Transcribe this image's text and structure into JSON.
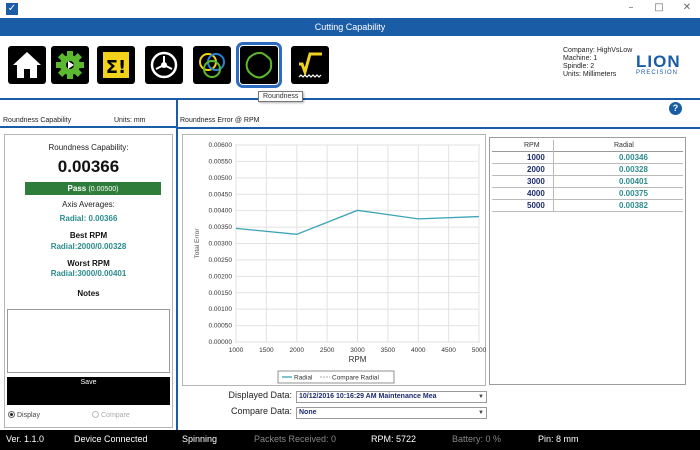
{
  "window": {
    "title": "Cutting Capability",
    "minimize": "–",
    "maximize": "□",
    "close": "✕"
  },
  "toolbar": {
    "buttons": [
      {
        "name": "home",
        "icon": "home-icon"
      },
      {
        "name": "settings",
        "icon": "gear-icon"
      },
      {
        "name": "summary",
        "icon": "sigma-icon"
      },
      {
        "name": "spindle",
        "icon": "spindle-icon"
      },
      {
        "name": "overlap",
        "icon": "circles-icon"
      },
      {
        "name": "roundness",
        "icon": "roundness-icon"
      },
      {
        "name": "waviness",
        "icon": "sqrt-wave-icon"
      }
    ],
    "tooltip": "Roundness"
  },
  "machine": {
    "company": "Company: HighVsLow",
    "machine": "Machine: 1",
    "spindle": "Spindle: 2",
    "units": "Units: Millimeters"
  },
  "logo": {
    "main": "LION",
    "sub": "PRECISION"
  },
  "help": "?",
  "left": {
    "header": "Roundness Capability",
    "units": "Units: mm",
    "capability_label": "Roundness Capability:",
    "capability_value": "0.00366",
    "pass_label": "Pass",
    "pass_limit": "(0.00500)",
    "axis_title": "Axis Averages:",
    "axis_value": "Radial:  0.00366",
    "best_title": "Best RPM",
    "best_value": "Radial:2000/0.00328",
    "worst_title": "Worst RPM",
    "worst_value": "Radial:3000/0.00401",
    "notes_title": "Notes",
    "save_label": "Save",
    "radio_display": "Display",
    "radio_compare": "Compare"
  },
  "right": {
    "header": "Roundness Error @ RPM"
  },
  "chart_data": {
    "type": "line",
    "x": [
      1000,
      2000,
      3000,
      4000,
      5000
    ],
    "series": [
      {
        "name": "Radial",
        "values": [
          0.00346,
          0.00328,
          0.00401,
          0.00375,
          0.00382
        ]
      }
    ],
    "legend": [
      "Radial",
      "Compare Radial"
    ],
    "xlabel": "RPM",
    "ylabel": "Total Error",
    "xticks": [
      "1000",
      "1500",
      "2000",
      "2500",
      "3000",
      "3500",
      "4000",
      "4500",
      "5000"
    ],
    "yticks": [
      "0.00000",
      "0.00050",
      "0.00100",
      "0.00150",
      "0.00200",
      "0.00250",
      "0.00300",
      "0.00350",
      "0.00400",
      "0.00450",
      "0.00500",
      "0.00550",
      "0.00600"
    ],
    "xlim": [
      1000,
      5000
    ],
    "ylim": [
      0,
      0.006
    ],
    "grid": true,
    "legend_position": "bottom"
  },
  "table": {
    "headers": [
      "RPM",
      "Radial"
    ],
    "rows": [
      [
        "1000",
        "0.00346"
      ],
      [
        "2000",
        "0.00328"
      ],
      [
        "3000",
        "0.00401"
      ],
      [
        "4000",
        "0.00375"
      ],
      [
        "5000",
        "0.00382"
      ]
    ]
  },
  "selectors": {
    "displayed_label": "Displayed Data:",
    "displayed_value": "10/12/2016 10:16:29 AM Maintenance Mea",
    "compare_label": "Compare Data:",
    "compare_value": "None",
    "arrow": "▼"
  },
  "status": {
    "version": "Ver. 1.1.0",
    "connection": "Device Connected",
    "state": "Spinning",
    "packets": "Packets Received:  0",
    "rpm": "RPM:  5722",
    "battery": "Battery:  0  %",
    "pin": "Pin: 8 mm"
  },
  "colors": {
    "accent": "#1a5da6",
    "pass": "#2f7d3a",
    "series": "#3aa3b8",
    "teal_text": "#2b8c8c",
    "navy_text": "#1c2b6b"
  }
}
